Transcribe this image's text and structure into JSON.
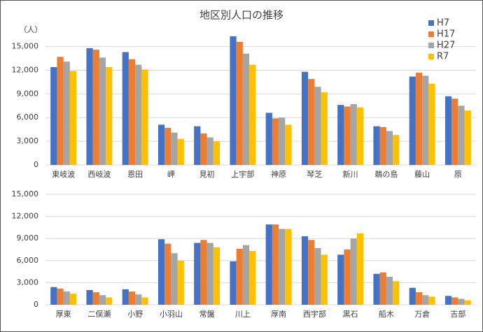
{
  "chart_data": [
    {
      "type": "bar",
      "title": "地区別人口の推移",
      "y_label": "（人）",
      "categories": [
        "東岐波",
        "西岐波",
        "恩田",
        "岬",
        "見初",
        "上宇部",
        "神原",
        "琴芝",
        "新川",
        "鵜の島",
        "藤山",
        "原"
      ],
      "series": [
        {
          "name": "H7",
          "color": "#4472c4",
          "values": [
            12400,
            14800,
            14300,
            5100,
            4900,
            16300,
            6600,
            11800,
            7600,
            4900,
            11200,
            8700
          ]
        },
        {
          "name": "H17",
          "color": "#ed7d31",
          "values": [
            13700,
            14600,
            13400,
            4700,
            4000,
            15600,
            5900,
            10900,
            7400,
            4800,
            11700,
            8400
          ]
        },
        {
          "name": "H27",
          "color": "#a5a5a5",
          "values": [
            13100,
            13600,
            12700,
            4100,
            3500,
            14100,
            6000,
            9900,
            7700,
            4300,
            11300,
            7500
          ]
        },
        {
          "name": "R7",
          "color": "#ffc000",
          "values": [
            11900,
            12400,
            12100,
            3300,
            3000,
            12700,
            5100,
            9200,
            7300,
            3800,
            10300,
            6900
          ]
        }
      ],
      "ylim": [
        0,
        17000
      ],
      "yticks": [
        0,
        {
          "value": 3000,
          "label": "3,000"
        },
        {
          "value": 6000,
          "label": "6,000"
        },
        {
          "value": 9000,
          "label": "9,000"
        },
        {
          "value": 12000,
          "label": "12,000"
        },
        {
          "value": 15000,
          "label": "15,000"
        }
      ],
      "grid": true,
      "legend": "top-right"
    },
    {
      "type": "bar",
      "categories": [
        "厚東",
        "二俣瀬",
        "小野",
        "小羽山",
        "常盤",
        "川上",
        "厚南",
        "西宇部",
        "黒石",
        "船木",
        "万倉",
        "吉部"
      ],
      "series": [
        {
          "color": "#4472c4",
          "values": [
            2400,
            2000,
            2100,
            8900,
            8400,
            5900,
            10900,
            9300,
            6800,
            4200,
            2300,
            1200
          ]
        },
        {
          "color": "#ed7d31",
          "values": [
            2200,
            1700,
            1800,
            8300,
            8800,
            7600,
            10900,
            8800,
            7500,
            4400,
            1700,
            1000
          ]
        },
        {
          "color": "#a5a5a5",
          "values": [
            1800,
            1300,
            1400,
            7000,
            8400,
            8100,
            10300,
            7700,
            9000,
            3800,
            1300,
            800
          ]
        },
        {
          "color": "#ffc000",
          "values": [
            1500,
            1000,
            1000,
            6000,
            7800,
            7300,
            10300,
            6800,
            9700,
            3200,
            1100,
            600
          ]
        }
      ],
      "ylim": [
        0,
        15000
      ],
      "yticks": [
        0,
        {
          "value": 3000,
          "label": "3,000"
        },
        {
          "value": 6000,
          "label": "6,000"
        },
        {
          "value": 9000,
          "label": "9,000"
        },
        {
          "value": 12000,
          "label": "12,000"
        },
        {
          "value": 15000,
          "label": "15,000"
        }
      ],
      "grid": true
    }
  ]
}
